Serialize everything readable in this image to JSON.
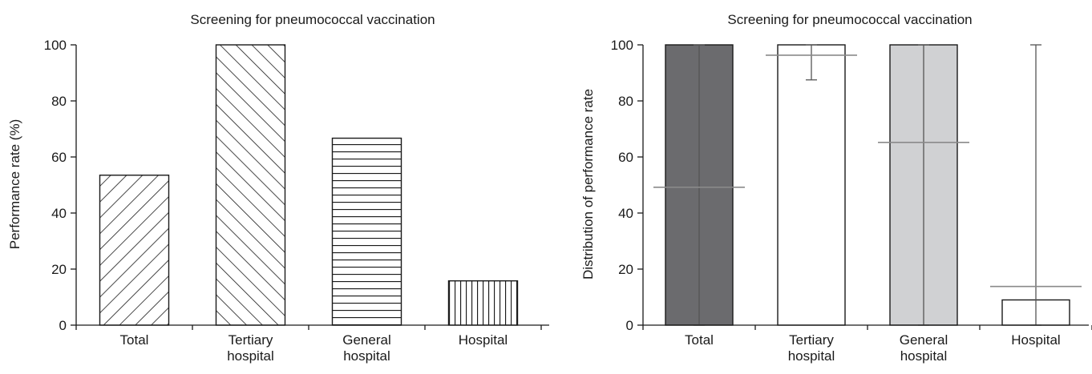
{
  "charts": [
    {
      "type": "bar",
      "title": "Screening for pneumococcal vaccination",
      "ylabel": "Performance rate (%)",
      "ylim": [
        0,
        100
      ],
      "yticks": [
        0,
        20,
        40,
        60,
        80,
        100
      ],
      "categories": [
        "Total",
        "Tertiary\nhospital",
        "General\nhospital",
        "Hospital"
      ],
      "values": [
        53.5,
        100,
        66.7,
        15.8
      ],
      "fill_patterns": [
        "diag-down",
        "diag-up",
        "horizontal",
        "vertical"
      ]
    },
    {
      "type": "bar",
      "title": "Screening for pneumococcal vaccination",
      "ylabel": "Distribution of performance rate",
      "ylim": [
        0,
        100
      ],
      "yticks": [
        0,
        20,
        40,
        60,
        80,
        100
      ],
      "categories": [
        "Total",
        "Tertiary\nhospital",
        "General\nhospital",
        "Hospital"
      ],
      "bar_colors": [
        "#6b6b6e",
        "#ffffff",
        "#d0d1d3",
        "#ffffff"
      ],
      "median": [
        100,
        100,
        100,
        9
      ],
      "mean": [
        49.2,
        96.3,
        65.2,
        13.8
      ],
      "range_min": [
        0,
        87.5,
        0,
        0
      ],
      "range_max": [
        100,
        100,
        100,
        100
      ]
    }
  ]
}
